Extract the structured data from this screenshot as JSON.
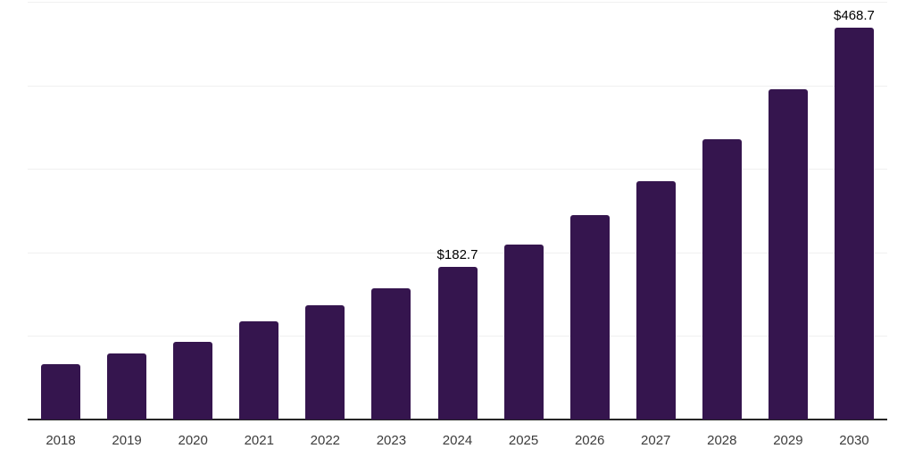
{
  "chart_data": {
    "type": "bar",
    "title": "",
    "xlabel": "",
    "ylabel": "",
    "categories": [
      "2018",
      "2019",
      "2020",
      "2021",
      "2022",
      "2023",
      "2024",
      "2025",
      "2026",
      "2027",
      "2028",
      "2029",
      "2030"
    ],
    "values": [
      66.0,
      78.8,
      92.7,
      117.2,
      136.3,
      156.6,
      182.7,
      209.8,
      245.0,
      285.5,
      335.5,
      395.2,
      468.7
    ],
    "data_labels": [
      {
        "category": "2024",
        "text": "$182.7"
      },
      {
        "category": "2030",
        "text": "$468.7"
      }
    ],
    "ylim": [
      0,
      500
    ],
    "gridline_values": [
      100,
      200,
      300,
      400,
      500
    ],
    "grid": "horizontal-only, no y-axis tick labels",
    "legend_position": "none",
    "series_name": "value"
  },
  "colors": {
    "bar": "#35154e",
    "axis_line": "#262626",
    "gridline": "#f0f0f0",
    "tick_label": "#3c3c3c",
    "data_label": "#000000",
    "background": "#ffffff"
  }
}
